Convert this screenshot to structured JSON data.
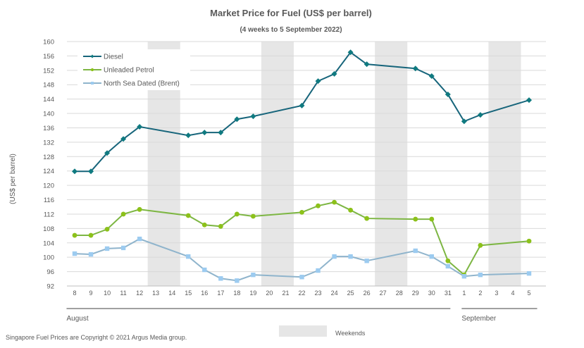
{
  "chart_data": {
    "type": "line",
    "title": "Market Price for Fuel (US$ per barrel)",
    "subtitle": "(4 weeks to 5 September 2022)",
    "ylabel": "(US$ per barrel)",
    "xlabel": "",
    "ylim": [
      92,
      160
    ],
    "ytick_step": 4,
    "grid": true,
    "legend_position": "top-left",
    "categories": [
      "8",
      "9",
      "10",
      "11",
      "12",
      "13",
      "14",
      "15",
      "16",
      "17",
      "18",
      "19",
      "20",
      "21",
      "22",
      "23",
      "24",
      "25",
      "26",
      "27",
      "28",
      "29",
      "30",
      "31",
      "1",
      "2",
      "3",
      "4",
      "5"
    ],
    "month_groups": [
      {
        "label": "August",
        "from": 0,
        "to": 23
      },
      {
        "label": "September",
        "from": 24,
        "to": 28
      }
    ],
    "weekends": [
      [
        5,
        6
      ],
      [
        12,
        13
      ],
      [
        19,
        20
      ],
      [
        26,
        27
      ]
    ],
    "weekend_legend": "Weekends",
    "series": [
      {
        "name": "Diesel",
        "color": "#17657b",
        "marker_color": "#0f7a80",
        "marker": "diamond",
        "values": [
          123.9,
          123.9,
          129.0,
          132.9,
          136.3,
          null,
          null,
          133.9,
          134.7,
          134.7,
          138.4,
          139.2,
          null,
          null,
          142.2,
          149.0,
          151.0,
          157.0,
          153.7,
          null,
          null,
          152.5,
          150.4,
          145.3,
          137.8,
          139.6,
          null,
          null,
          143.7
        ]
      },
      {
        "name": "Unleaded Petrol",
        "color": "#7db643",
        "marker_color": "#8cc11a",
        "marker": "circle",
        "values": [
          106.1,
          106.1,
          107.8,
          112.0,
          113.3,
          null,
          null,
          111.6,
          109.0,
          108.6,
          112.0,
          111.4,
          null,
          null,
          112.5,
          114.3,
          115.3,
          113.1,
          110.8,
          null,
          null,
          110.6,
          110.6,
          99.0,
          95.1,
          103.3,
          null,
          null,
          104.5
        ]
      },
      {
        "name": "North Sea Dated (Brent)",
        "color": "#8fb4cc",
        "marker_color": "#9ccbf0",
        "marker": "square",
        "values": [
          101.0,
          100.8,
          102.4,
          102.6,
          105.1,
          null,
          null,
          100.2,
          96.5,
          94.1,
          93.5,
          95.1,
          null,
          null,
          94.5,
          96.3,
          100.2,
          100.2,
          99.0,
          null,
          null,
          101.8,
          100.2,
          97.5,
          94.7,
          95.1,
          null,
          null,
          95.5
        ]
      }
    ]
  },
  "footer": {
    "copyright": "Singapore Fuel Prices are Copyright © 2021 Argus Media group."
  }
}
